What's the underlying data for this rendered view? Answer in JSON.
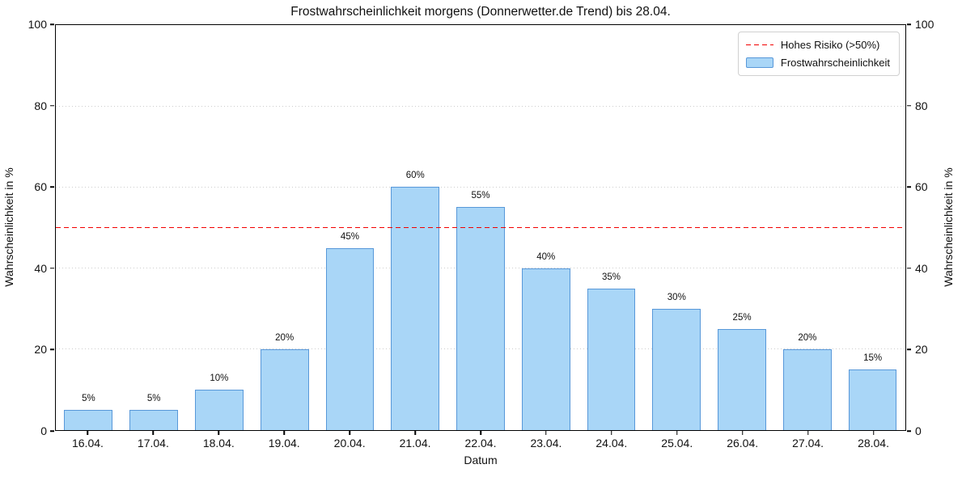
{
  "chart_data": {
    "type": "bar",
    "title": "Frostwahrscheinlichkeit morgens (Donnerwetter.de Trend) bis 28.04.",
    "xlabel": "Datum",
    "ylabel_left": "Wahrscheinlichkeit in %",
    "ylabel_right": "Wahrscheinlichkeit in %",
    "categories": [
      "16.04.",
      "17.04.",
      "18.04.",
      "19.04.",
      "20.04.",
      "21.04.",
      "22.04.",
      "23.04.",
      "24.04.",
      "25.04.",
      "26.04.",
      "27.04.",
      "28.04."
    ],
    "values": [
      5,
      5,
      10,
      20,
      45,
      60,
      55,
      40,
      35,
      30,
      25,
      20,
      15
    ],
    "bar_labels": [
      "5%",
      "5%",
      "10%",
      "20%",
      "45%",
      "60%",
      "55%",
      "40%",
      "35%",
      "30%",
      "25%",
      "20%",
      "15%"
    ],
    "ylim": [
      0,
      100
    ],
    "yticks": [
      0,
      20,
      40,
      60,
      80,
      100
    ],
    "ytick_labels": [
      "0",
      "20",
      "40",
      "60",
      "80",
      "100"
    ],
    "gridlines_at": [
      20,
      40,
      60,
      80
    ],
    "grid_style": "dotted horizontal",
    "threshold": {
      "value": 50,
      "label": "Hohes Risiko (>50%)",
      "style": "dashed"
    },
    "legend_position": "upper right",
    "legend": [
      {
        "label": "Hohes Risiko (>50%)",
        "swatch": "dashed-line"
      },
      {
        "label": "Frostwahrscheinlichkeit",
        "swatch": "filled-box"
      }
    ]
  },
  "colors": {
    "bar_fill": "#a9d6f7",
    "bar_edge": "#5898d9",
    "threshold_line": "#f20000",
    "grid": "#c4c4c4",
    "axis": "#000000",
    "background": "#ffffff",
    "legend_border": "#d0d0d0",
    "text": "#111111"
  }
}
